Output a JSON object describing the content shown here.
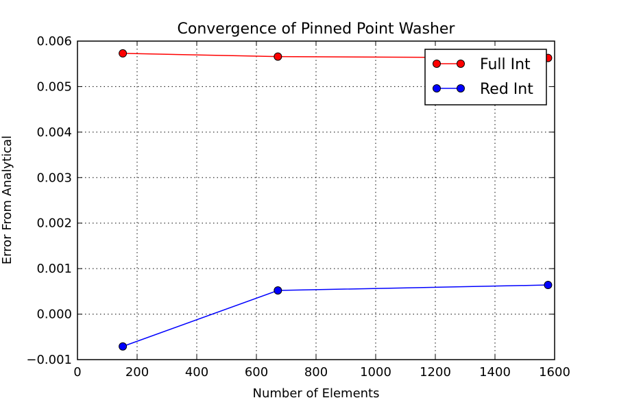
{
  "chart_data": {
    "type": "line",
    "title": "Convergence of Pinned Point Washer",
    "xlabel": "Number of Elements",
    "ylabel": "Error From Analytical",
    "xlim": [
      0,
      1600
    ],
    "ylim": [
      -0.001,
      0.006
    ],
    "xticks": [
      0,
      200,
      400,
      600,
      800,
      1000,
      1200,
      1400,
      1600
    ],
    "xtick_labels": [
      "0",
      "200",
      "400",
      "600",
      "800",
      "1000",
      "1200",
      "1400",
      "1600"
    ],
    "yticks": [
      -0.001,
      0.0,
      0.001,
      0.002,
      0.003,
      0.004,
      0.005,
      0.006
    ],
    "ytick_labels": [
      "−0.001",
      "0.000",
      "0.001",
      "0.002",
      "0.003",
      "0.004",
      "0.005",
      "0.006"
    ],
    "grid": true,
    "legend": "top-right",
    "series": [
      {
        "name": "Full Int",
        "color": "#ff0000",
        "x": [
          152,
          672,
          1578
        ],
        "y": [
          0.00573,
          0.00566,
          0.00563
        ]
      },
      {
        "name": "Red Int",
        "color": "#0000ff",
        "x": [
          152,
          672,
          1578
        ],
        "y": [
          -0.00071,
          0.00052,
          0.00064
        ]
      }
    ]
  }
}
